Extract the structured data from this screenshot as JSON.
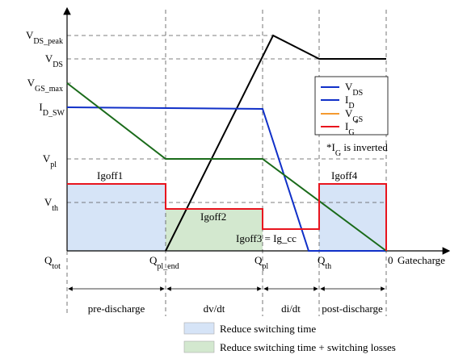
{
  "y_labels": [
    {
      "text": "V",
      "sub": "DS_peak"
    },
    {
      "text": "V",
      "sub": "DS"
    },
    {
      "text": "V",
      "sub": "GS_max"
    },
    {
      "text": "I",
      "sub": "D_SW"
    },
    {
      "text": "V",
      "sub": "pl"
    },
    {
      "text": "V",
      "sub": "th"
    }
  ],
  "x_labels": [
    {
      "text": "Q",
      "sub": "tot"
    },
    {
      "text": "Q",
      "sub": "pl_end"
    },
    {
      "text": "Q",
      "sub": "pl"
    },
    {
      "text": "Q",
      "sub": "th"
    },
    {
      "text": "0"
    }
  ],
  "x_axis_label": "Gatecharge",
  "annotations": [
    "Igoff1",
    "Igoff2",
    "Igoff3 = Ig_cc",
    "Igoff4"
  ],
  "legend": [
    {
      "text": "V",
      "sub": "DS"
    },
    {
      "text": "I",
      "sub": "D"
    },
    {
      "text": "V",
      "sub": "GS"
    },
    {
      "text": "I",
      "sub": "G",
      "sup": "*"
    }
  ],
  "note": {
    "prefix": "*",
    "text": "I",
    "sub": "G",
    "suffix": " is inverted"
  },
  "phases": [
    "pre-discharge",
    "dv/dt",
    "di/dt",
    "post-discharge"
  ],
  "fill_legend": [
    "Reduce switching time",
    "Reduce switching time + switching losses"
  ]
}
